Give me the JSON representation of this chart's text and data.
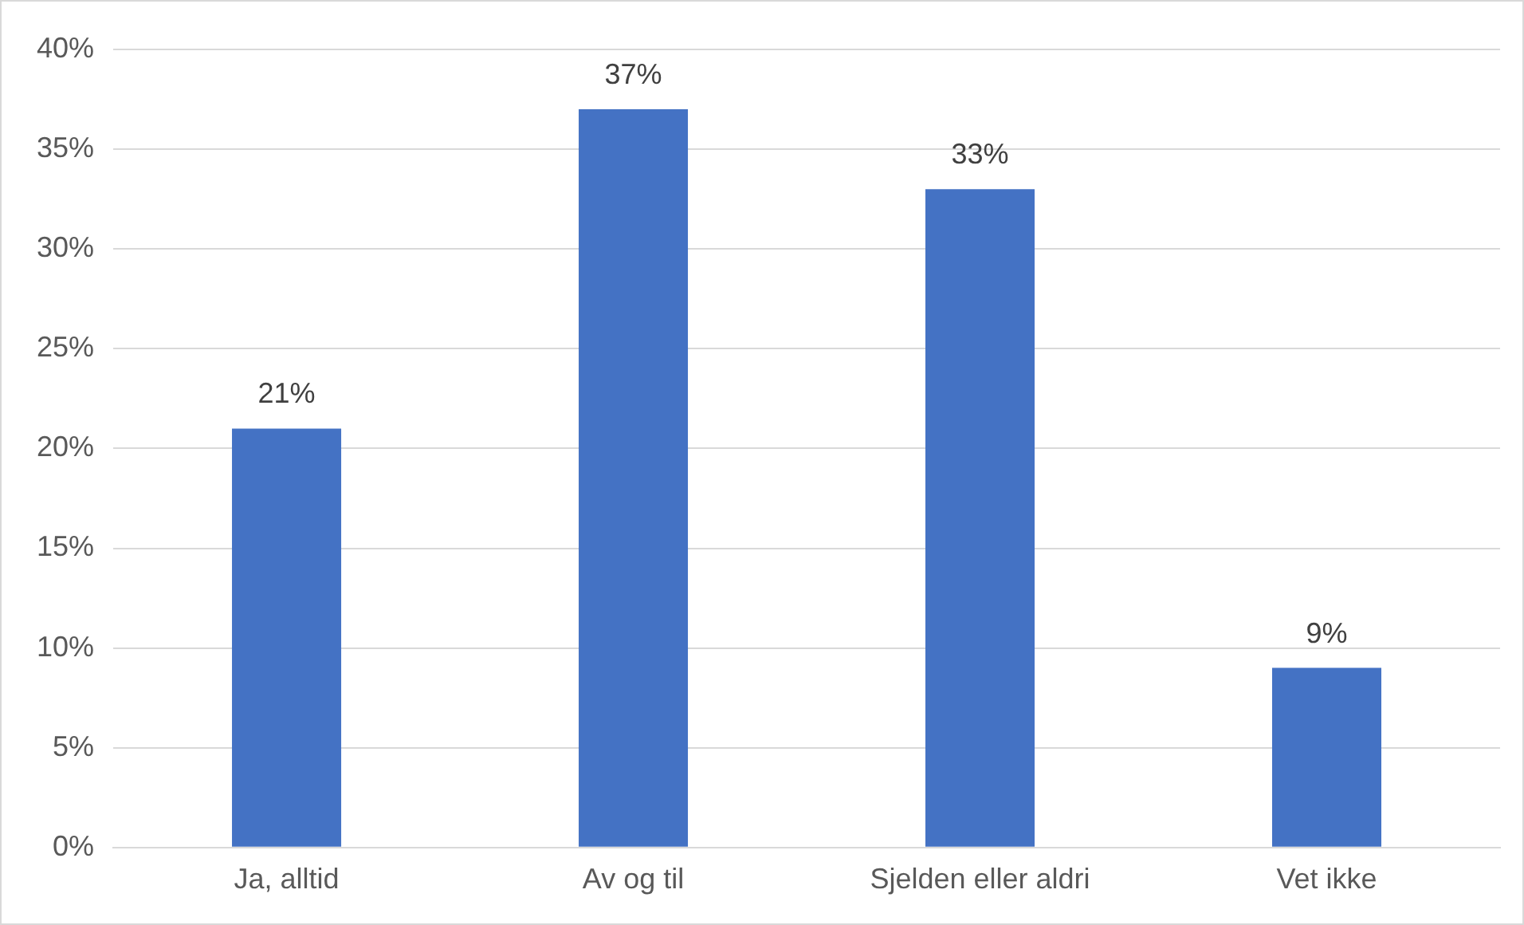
{
  "chart_data": {
    "type": "bar",
    "categories": [
      "Ja, alltid",
      "Av og til",
      "Sjelden eller aldri",
      "Vet ikke"
    ],
    "values": [
      21,
      37,
      33,
      9
    ],
    "color": "#4472c4",
    "value_labels": [
      "21%",
      "37%",
      "33%",
      "9%"
    ],
    "ylim": [
      0,
      40
    ],
    "yticks": [
      {
        "value": 0,
        "label": "0%"
      },
      {
        "value": 5,
        "label": "5%"
      },
      {
        "value": 10,
        "label": "10%"
      },
      {
        "value": 15,
        "label": "15%"
      },
      {
        "value": 20,
        "label": "20%"
      },
      {
        "value": 25,
        "label": "25%"
      },
      {
        "value": 30,
        "label": "30%"
      },
      {
        "value": 35,
        "label": "35%"
      },
      {
        "value": 40,
        "label": "40%"
      }
    ],
    "grid": "y",
    "legend": false
  }
}
